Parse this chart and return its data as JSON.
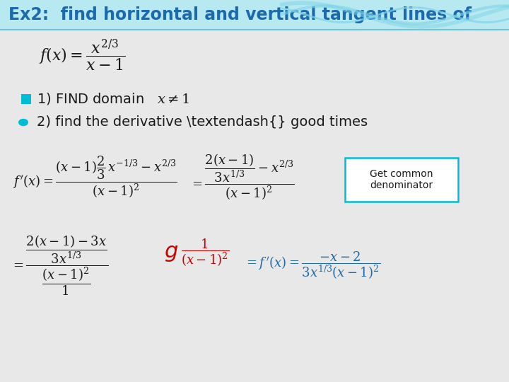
{
  "title": "Ex2:  find horizontal and vertical tangent lines of",
  "title_color": "#1a6aad",
  "title_bg_color": "#b8e8f0",
  "bg_color": "#e8e8e8",
  "content_bg": "#f2f2f2",
  "box_text": "Get common\ndenominator",
  "box_border": "#00bcd4",
  "annotation_color_red": "#cc0000",
  "annotation_color_blue": "#1a6aad",
  "annotation_color_black": "#1a1a1a",
  "bullet_color": "#00bcd4",
  "wave_color": "#7dd4e8"
}
